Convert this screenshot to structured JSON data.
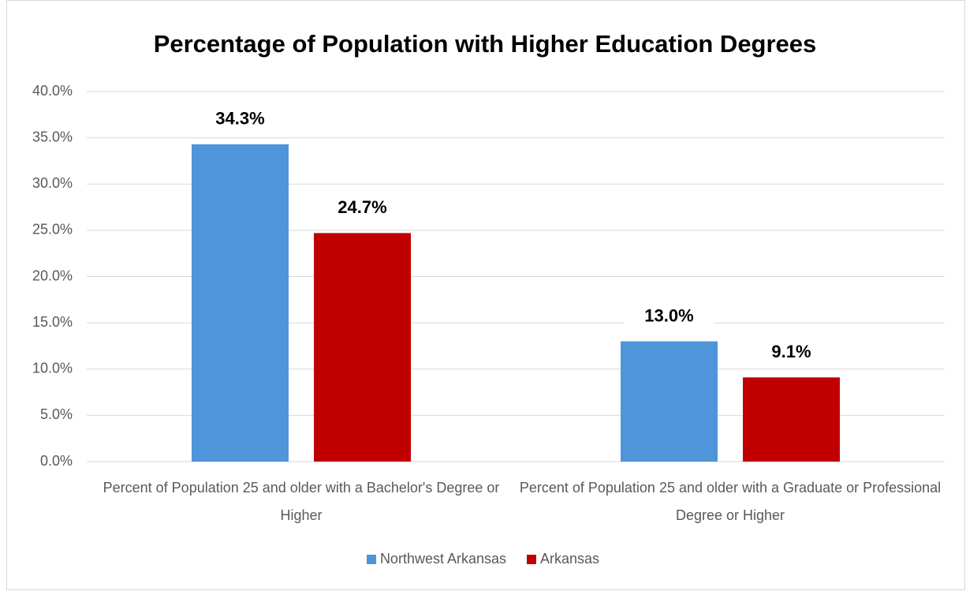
{
  "chart_data": {
    "type": "bar",
    "title": "Percentage of Population with Higher Education Degrees",
    "categories": [
      "Percent of Population 25 and older with a Bachelor's Degree or Higher",
      "Percent of Population 25 and older with a Graduate or Professional Degree or Higher"
    ],
    "series": [
      {
        "name": "Northwest Arkansas",
        "color": "#4e95d9",
        "values": [
          34.3,
          13.0
        ],
        "value_labels": [
          "34.3%",
          "13.0%"
        ]
      },
      {
        "name": "Arkansas",
        "color": "#c00000",
        "values": [
          24.7,
          9.1
        ],
        "value_labels": [
          "24.7%",
          "9.1%"
        ]
      }
    ],
    "ylim": [
      0,
      40
    ],
    "yticks": [
      {
        "value": 0,
        "label": "0.0%"
      },
      {
        "value": 5,
        "label": "5.0%"
      },
      {
        "value": 10,
        "label": "10.0%"
      },
      {
        "value": 15,
        "label": "15.0%"
      },
      {
        "value": 20,
        "label": "20.0%"
      },
      {
        "value": 25,
        "label": "25.0%"
      },
      {
        "value": 30,
        "label": "30.0%"
      },
      {
        "value": 35,
        "label": "35.0%"
      },
      {
        "value": 40,
        "label": "40.0%"
      }
    ],
    "grid": true,
    "legend": "bottom"
  }
}
